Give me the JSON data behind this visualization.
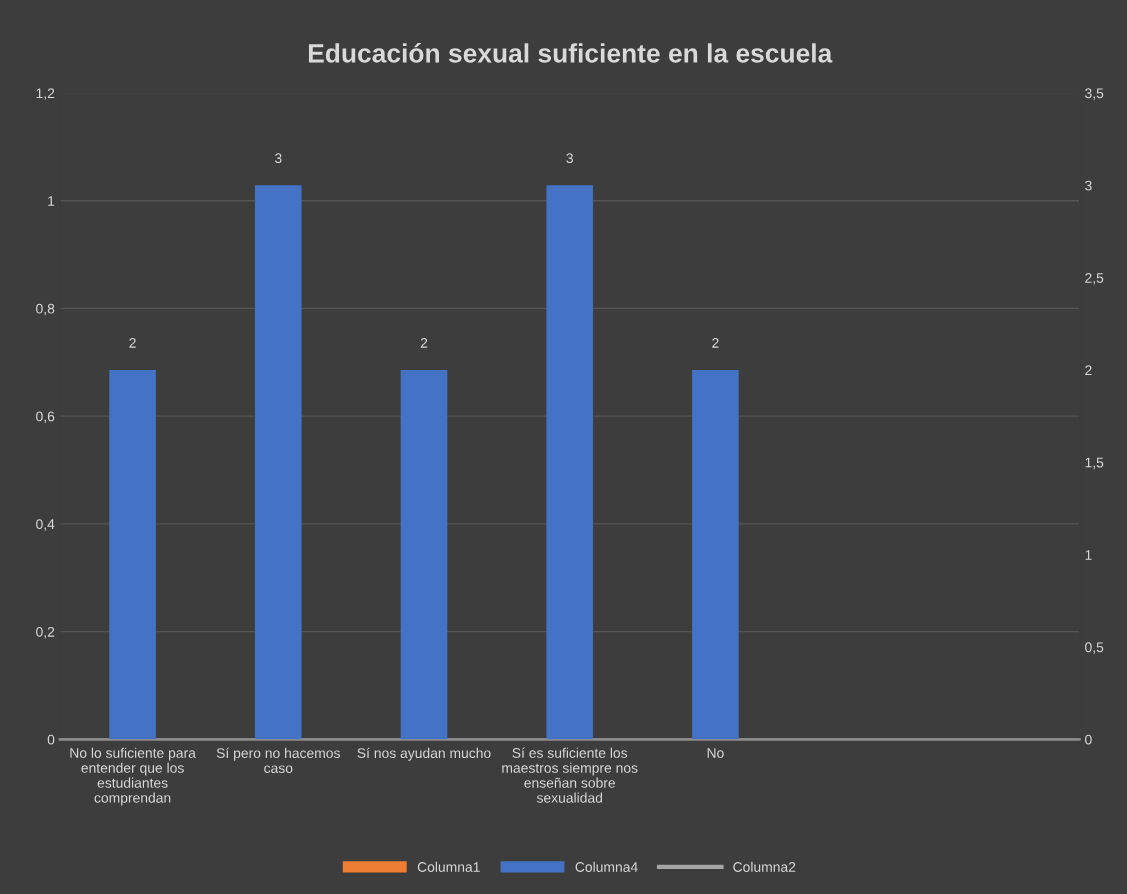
{
  "chart_data": {
    "type": "bar",
    "title": "Educación sexual suficiente en la escuela",
    "categories": [
      "No lo suficiente para entender que los estudiantes comprendan",
      "Sí pero no hacemos caso",
      "Sí nos ayudan mucho",
      "Sí es suficiente los maestros siempre nos enseñan sobre sexualidad",
      "No",
      null,
      null
    ],
    "series": [
      {
        "name": "Columna1",
        "color": "#ed7d31",
        "values": [
          null,
          null,
          null,
          null,
          null,
          null,
          null
        ]
      },
      {
        "name": "Columna4",
        "axis": "y2",
        "color": "#4472c4",
        "values": [
          2,
          3,
          2,
          3,
          2,
          null,
          null
        ]
      },
      {
        "name": "Columna2",
        "type": "line",
        "color": "#a5a5a5",
        "values": [
          null,
          null,
          null,
          null,
          null,
          null,
          null
        ]
      }
    ],
    "ylim": [
      0,
      1.2
    ],
    "yticks": [
      0,
      {
        "value": 0.2,
        "label": "0,2"
      },
      {
        "value": 0.4,
        "label": "0,4"
      },
      {
        "value": 0.6,
        "label": "0,6"
      },
      {
        "value": 0.8,
        "label": "0,8"
      },
      1,
      {
        "value": 1.2,
        "label": "1,2"
      }
    ],
    "y2lim": [
      0,
      3.5
    ],
    "y2ticks": [
      0,
      {
        "value": 0.5,
        "label": "0,5"
      },
      1,
      {
        "value": 1.5,
        "label": "1,5"
      },
      2,
      {
        "value": 2.5,
        "label": "2,5"
      },
      3,
      {
        "value": 3.5,
        "label": "3,5"
      }
    ],
    "data_labels": true,
    "grid": "y",
    "legend": "bottom"
  }
}
